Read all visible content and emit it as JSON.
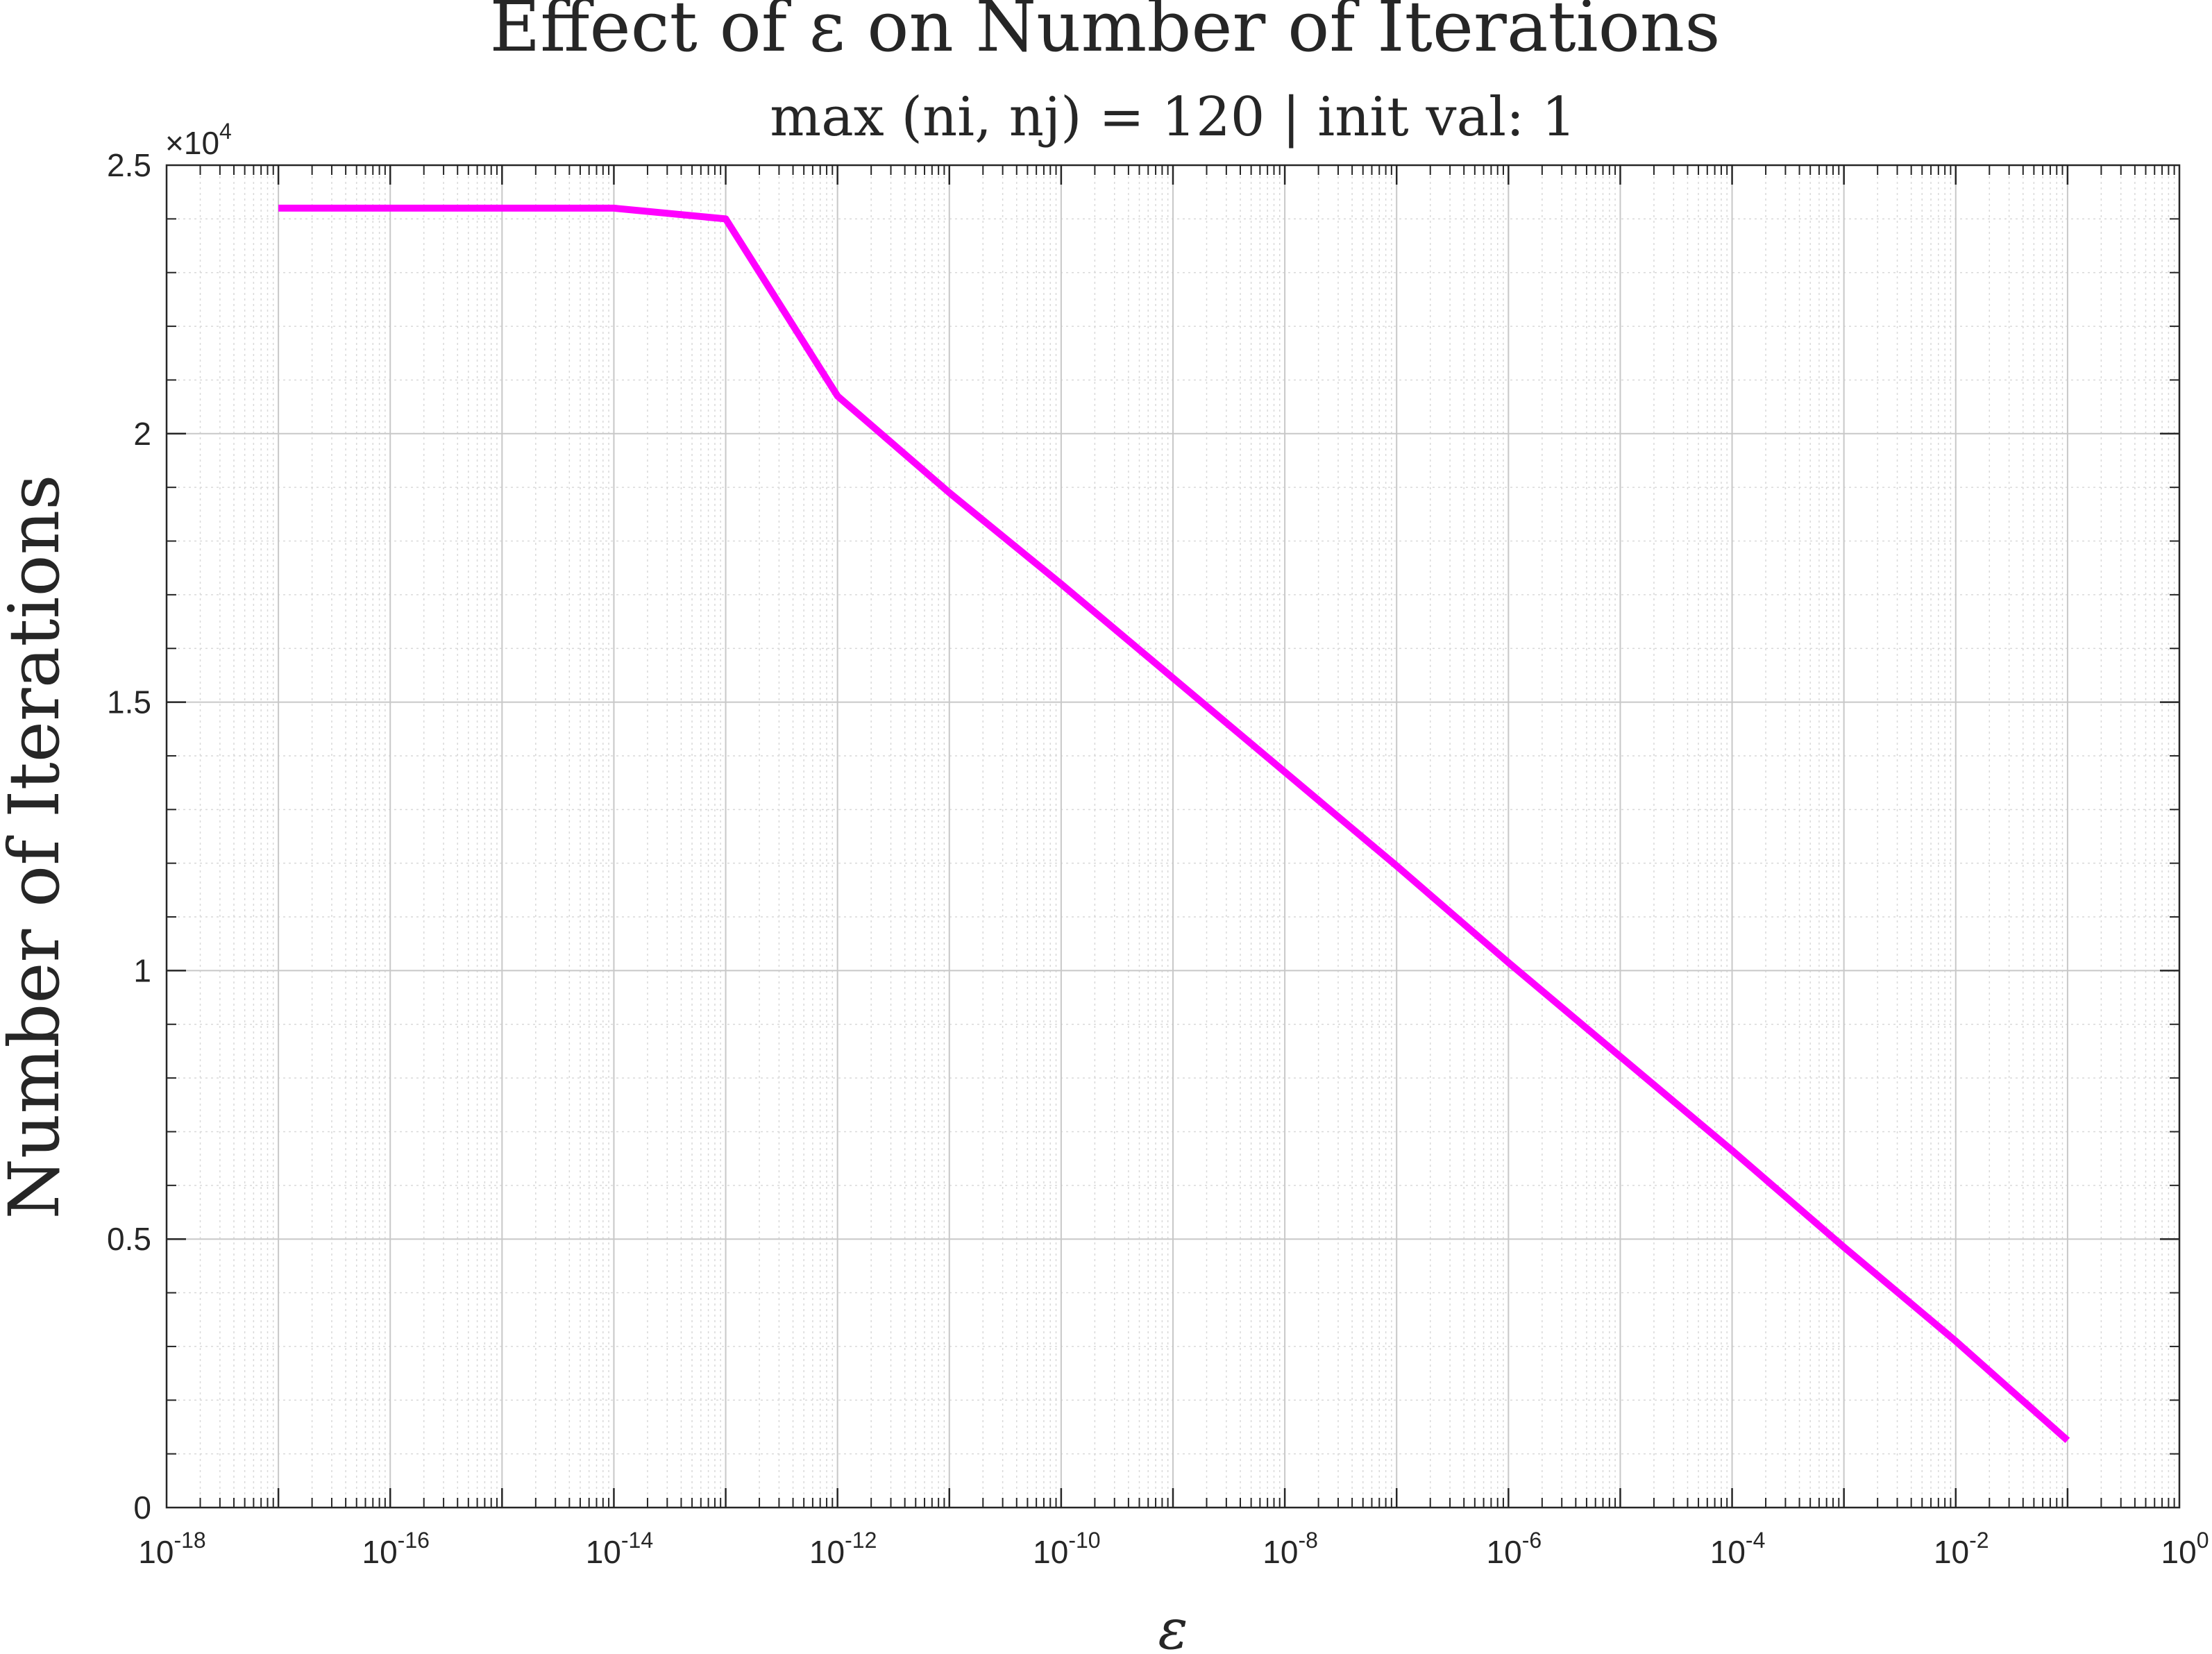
{
  "chart_data": {
    "type": "line",
    "title": "Effect of ε on Number of Iterations",
    "subtitle": "max (ni, nj) = 120 | init val: 1",
    "xlabel": "ε",
    "ylabel": "Number of Iterations",
    "x_scale": "log",
    "xlim": [
      1e-18,
      1
    ],
    "ylim": [
      0,
      25000
    ],
    "y_exponent_label": "×10",
    "y_exponent_power": "4",
    "x_ticks": [
      {
        "value": 1e-18,
        "base": "10",
        "exp": "-18"
      },
      {
        "value": 1e-16,
        "base": "10",
        "exp": "-16"
      },
      {
        "value": 1e-14,
        "base": "10",
        "exp": "-14"
      },
      {
        "value": 1e-12,
        "base": "10",
        "exp": "-12"
      },
      {
        "value": 1e-10,
        "base": "10",
        "exp": "-10"
      },
      {
        "value": 1e-08,
        "base": "10",
        "exp": "-8"
      },
      {
        "value": 1e-06,
        "base": "10",
        "exp": "-6"
      },
      {
        "value": 0.0001,
        "base": "10",
        "exp": "-4"
      },
      {
        "value": 0.01,
        "base": "10",
        "exp": "-2"
      },
      {
        "value": 1,
        "base": "10",
        "exp": "0"
      }
    ],
    "y_ticks": [
      {
        "value": 0,
        "label": "0"
      },
      {
        "value": 5000,
        "label": "0.5"
      },
      {
        "value": 10000,
        "label": "1"
      },
      {
        "value": 15000,
        "label": "1.5"
      },
      {
        "value": 20000,
        "label": "2"
      },
      {
        "value": 25000,
        "label": "2.5"
      }
    ],
    "grid": true,
    "minor_grid": true,
    "series": [
      {
        "color": "#ff00ff",
        "x": [
          1e-17,
          1e-16,
          1e-15,
          1e-14,
          1e-13,
          1e-12,
          1e-11,
          1e-10,
          1e-09,
          1e-08,
          1e-07,
          1e-06,
          1e-05,
          0.0001,
          0.001,
          0.01,
          0.1
        ],
        "y": [
          24200,
          24200,
          24200,
          24200,
          24000,
          20700,
          18900,
          17200,
          15450,
          13700,
          11950,
          10150,
          8400,
          6650,
          4850,
          3100,
          1250
        ]
      }
    ]
  }
}
